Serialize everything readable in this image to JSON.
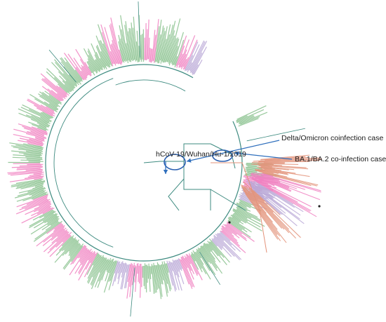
{
  "annotations": {
    "reference": "hCoV-19/Wuhan/Hu-1/2019",
    "delta_omicron": "Delta/Omicron coinfection case",
    "ba_coinfection": "BA.1/BA.2 co-infection cases"
  },
  "colors": {
    "branch": "#3e8b80",
    "green_clade": "#86c08b",
    "pink_clade": "#f07fbf",
    "lavender_clade": "#b9a7d6",
    "salmon_clade": "#e3937a",
    "arrow": "#2f6fbd",
    "circle": "#2a5fb0"
  }
}
